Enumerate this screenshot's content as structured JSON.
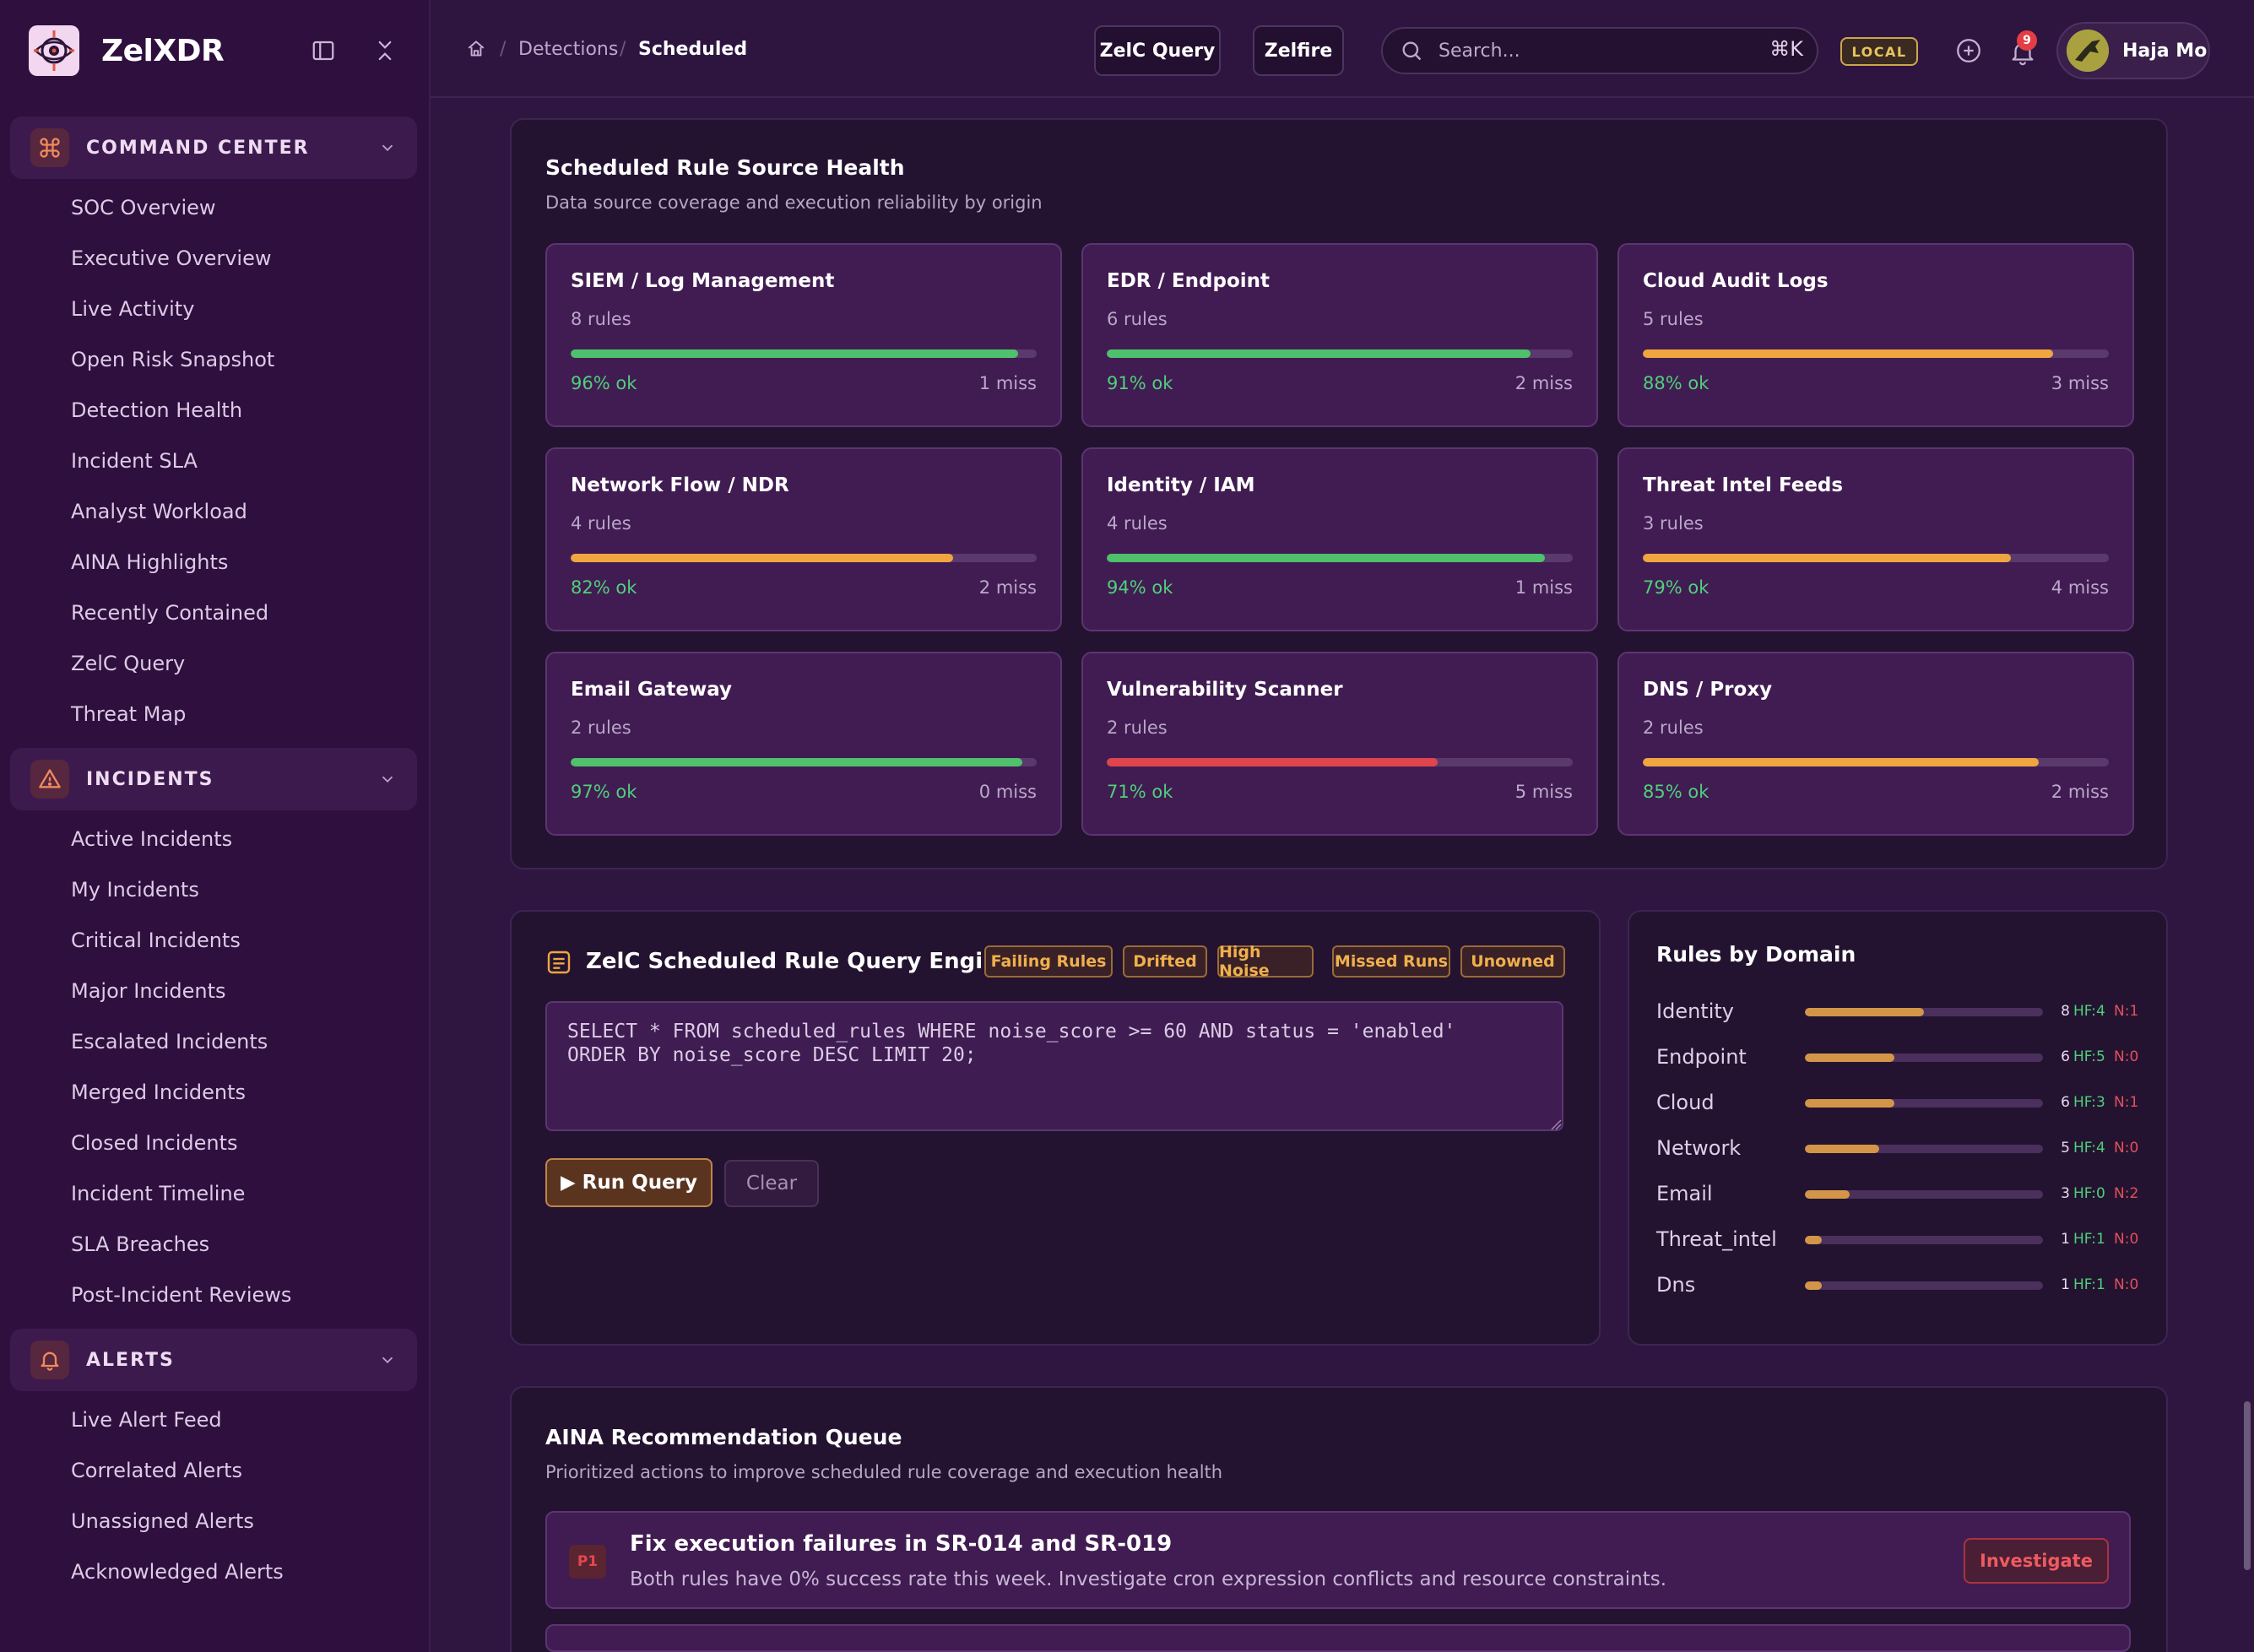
{
  "brand": {
    "name": "ZelXDR"
  },
  "sidebar": {
    "sections": [
      {
        "title": "COMMAND CENTER",
        "icon": "command-icon",
        "items": [
          "SOC Overview",
          "Executive Overview",
          "Live Activity",
          "Open Risk Snapshot",
          "Detection Health",
          "Incident SLA",
          "Analyst Workload",
          "AINA Highlights",
          "Recently Contained",
          "ZelC Query",
          "Threat Map"
        ]
      },
      {
        "title": "INCIDENTS",
        "icon": "warning-icon",
        "items": [
          "Active Incidents",
          "My Incidents",
          "Critical Incidents",
          "Major Incidents",
          "Escalated Incidents",
          "Merged Incidents",
          "Closed Incidents",
          "Incident Timeline",
          "SLA Breaches",
          "Post-Incident Reviews"
        ]
      },
      {
        "title": "ALERTS",
        "icon": "bell-icon",
        "items": [
          "Live Alert Feed",
          "Correlated Alerts",
          "Unassigned Alerts",
          "Acknowledged Alerts"
        ]
      }
    ]
  },
  "topbar": {
    "breadcrumb": [
      "Detections",
      "Scheduled"
    ],
    "zelc_query_label": "ZelC Query",
    "zelfire_label": "Zelfire",
    "search_placeholder": "Search...",
    "search_shortcut": "⌘K",
    "env_badge": "LOCAL",
    "notification_count": "9",
    "user_name": "Haja Mo"
  },
  "source_health": {
    "title": "Scheduled Rule Source Health",
    "subtitle": "Data source coverage and execution reliability by origin",
    "colors": {
      "good": "#4fc06c",
      "warn": "#f0a640",
      "bad": "#e0444c"
    },
    "cards": [
      {
        "name": "SIEM / Log Management",
        "rules": "8 rules",
        "ok": "96% ok",
        "miss": "1 miss",
        "pct": 96,
        "status": "good"
      },
      {
        "name": "EDR / Endpoint",
        "rules": "6 rules",
        "ok": "91% ok",
        "miss": "2 miss",
        "pct": 91,
        "status": "good"
      },
      {
        "name": "Cloud Audit Logs",
        "rules": "5 rules",
        "ok": "88% ok",
        "miss": "3 miss",
        "pct": 88,
        "status": "warn"
      },
      {
        "name": "Network Flow / NDR",
        "rules": "4 rules",
        "ok": "82% ok",
        "miss": "2 miss",
        "pct": 82,
        "status": "warn"
      },
      {
        "name": "Identity / IAM",
        "rules": "4 rules",
        "ok": "94% ok",
        "miss": "1 miss",
        "pct": 94,
        "status": "good"
      },
      {
        "name": "Threat Intel Feeds",
        "rules": "3 rules",
        "ok": "79% ok",
        "miss": "4 miss",
        "pct": 79,
        "status": "warn"
      },
      {
        "name": "Email Gateway",
        "rules": "2 rules",
        "ok": "97% ok",
        "miss": "0 miss",
        "pct": 97,
        "status": "good"
      },
      {
        "name": "Vulnerability Scanner",
        "rules": "2 rules",
        "ok": "71% ok",
        "miss": "5 miss",
        "pct": 71,
        "status": "bad"
      },
      {
        "name": "DNS / Proxy",
        "rules": "2 rules",
        "ok": "85% ok",
        "miss": "2 miss",
        "pct": 85,
        "status": "warn"
      }
    ]
  },
  "query_engine": {
    "title": "ZelC Scheduled Rule Query Engine",
    "chips": [
      "Failing Rules",
      "Drifted",
      "High Noise",
      "Missed Runs",
      "Unowned"
    ],
    "query": "SELECT * FROM scheduled_rules WHERE noise_score >= 60 AND status = 'enabled'\nORDER BY noise_score DESC LIMIT 20;",
    "run_label": "▶ Run Query",
    "clear_label": "Clear"
  },
  "rules_by_domain": {
    "title": "Rules by Domain",
    "max": 8,
    "rows": [
      {
        "name": "Identity",
        "count": 8,
        "count_label": "8",
        "hf": "HF:4",
        "n": "N:1"
      },
      {
        "name": "Endpoint",
        "count": 6,
        "count_label": "6",
        "hf": "HF:5",
        "n": "N:0"
      },
      {
        "name": "Cloud",
        "count": 6,
        "count_label": "6",
        "hf": "HF:3",
        "n": "N:1"
      },
      {
        "name": "Network",
        "count": 5,
        "count_label": "5",
        "hf": "HF:4",
        "n": "N:0"
      },
      {
        "name": "Email",
        "count": 3,
        "count_label": "3",
        "hf": "HF:0",
        "n": "N:2"
      },
      {
        "name": "Threat_intel",
        "count": 1,
        "count_label": "1",
        "hf": "HF:1",
        "n": "N:0"
      },
      {
        "name": "Dns",
        "count": 1,
        "count_label": "1",
        "hf": "HF:1",
        "n": "N:0"
      }
    ]
  },
  "recommendations": {
    "title": "AINA Recommendation Queue",
    "subtitle": "Prioritized actions to improve scheduled rule coverage and execution health",
    "items": [
      {
        "priority": "P1",
        "title": "Fix execution failures in SR-014 and SR-019",
        "desc": "Both rules have 0% success rate this week. Investigate cron expression conflicts and resource constraints.",
        "action": "Investigate"
      }
    ]
  }
}
